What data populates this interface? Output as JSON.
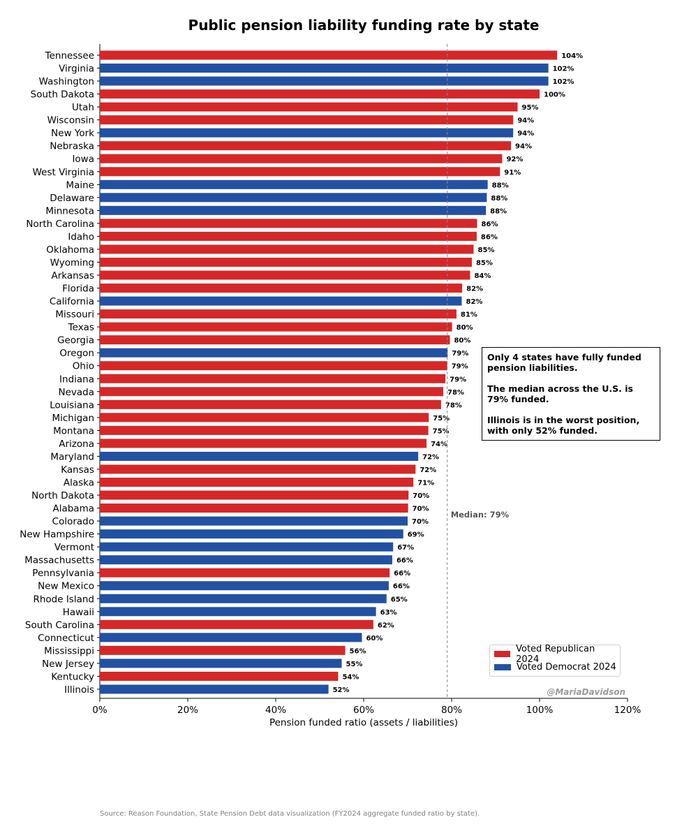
{
  "chart_data": {
    "type": "bar",
    "orientation": "horizontal",
    "title": "Public pension liability funding rate by state",
    "xlabel": "Pension funded ratio (assets / liabilities)",
    "ylabel": "",
    "xlim": [
      0,
      120
    ],
    "xticks": [
      0,
      20,
      40,
      60,
      80,
      100,
      120
    ],
    "xtick_labels": [
      "0%",
      "20%",
      "40%",
      "60%",
      "80%",
      "100%",
      "120%"
    ],
    "grid": false,
    "median": {
      "value": 79,
      "label": "Median: 79%"
    },
    "legend_placement": "lower-right",
    "series": [
      {
        "name": "Voted Republican 2024",
        "color": "#d62728"
      },
      {
        "name": "Voted Democrat 2024",
        "color": "#2251a3"
      }
    ],
    "bars": [
      {
        "state": "Tennessee",
        "value": 104,
        "label": "104%",
        "party": "R"
      },
      {
        "state": "Virginia",
        "value": 102,
        "label": "102%",
        "party": "D"
      },
      {
        "state": "Washington",
        "value": 102,
        "label": "102%",
        "party": "D"
      },
      {
        "state": "South Dakota",
        "value": 100,
        "label": "100%",
        "party": "R"
      },
      {
        "state": "Utah",
        "value": 95,
        "label": "95%",
        "party": "R"
      },
      {
        "state": "Wisconsin",
        "value": 94,
        "label": "94%",
        "party": "R"
      },
      {
        "state": "New York",
        "value": 94,
        "label": "94%",
        "party": "D"
      },
      {
        "state": "Nebraska",
        "value": 93.5,
        "label": "94%",
        "party": "R"
      },
      {
        "state": "Iowa",
        "value": 91.5,
        "label": "92%",
        "party": "R"
      },
      {
        "state": "West Virginia",
        "value": 91,
        "label": "91%",
        "party": "R"
      },
      {
        "state": "Maine",
        "value": 88.2,
        "label": "88%",
        "party": "D"
      },
      {
        "state": "Delaware",
        "value": 88,
        "label": "88%",
        "party": "D"
      },
      {
        "state": "Minnesota",
        "value": 87.8,
        "label": "88%",
        "party": "D"
      },
      {
        "state": "North Carolina",
        "value": 85.8,
        "label": "86%",
        "party": "R"
      },
      {
        "state": "Idaho",
        "value": 85.7,
        "label": "86%",
        "party": "R"
      },
      {
        "state": "Oklahoma",
        "value": 85,
        "label": "85%",
        "party": "R"
      },
      {
        "state": "Wyoming",
        "value": 84.6,
        "label": "85%",
        "party": "R"
      },
      {
        "state": "Arkansas",
        "value": 84.2,
        "label": "84%",
        "party": "R"
      },
      {
        "state": "Florida",
        "value": 82.4,
        "label": "82%",
        "party": "R"
      },
      {
        "state": "California",
        "value": 82.3,
        "label": "82%",
        "party": "D"
      },
      {
        "state": "Missouri",
        "value": 81.1,
        "label": "81%",
        "party": "R"
      },
      {
        "state": "Texas",
        "value": 80.1,
        "label": "80%",
        "party": "R"
      },
      {
        "state": "Georgia",
        "value": 79.6,
        "label": "80%",
        "party": "R"
      },
      {
        "state": "Oregon",
        "value": 79.1,
        "label": "79%",
        "party": "D"
      },
      {
        "state": "Ohio",
        "value": 79,
        "label": "79%",
        "party": "R"
      },
      {
        "state": "Indiana",
        "value": 78.6,
        "label": "79%",
        "party": "R"
      },
      {
        "state": "Nevada",
        "value": 78.1,
        "label": "78%",
        "party": "R"
      },
      {
        "state": "Louisiana",
        "value": 77.6,
        "label": "78%",
        "party": "R"
      },
      {
        "state": "Michigan",
        "value": 74.8,
        "label": "75%",
        "party": "R"
      },
      {
        "state": "Montana",
        "value": 74.7,
        "label": "75%",
        "party": "R"
      },
      {
        "state": "Arizona",
        "value": 74.3,
        "label": "74%",
        "party": "R"
      },
      {
        "state": "Maryland",
        "value": 72.4,
        "label": "72%",
        "party": "D"
      },
      {
        "state": "Kansas",
        "value": 71.8,
        "label": "72%",
        "party": "R"
      },
      {
        "state": "Alaska",
        "value": 71.3,
        "label": "71%",
        "party": "R"
      },
      {
        "state": "North Dakota",
        "value": 70.2,
        "label": "70%",
        "party": "R"
      },
      {
        "state": "Alabama",
        "value": 70.1,
        "label": "70%",
        "party": "R"
      },
      {
        "state": "Colorado",
        "value": 70,
        "label": "70%",
        "party": "D"
      },
      {
        "state": "New Hampshire",
        "value": 69,
        "label": "69%",
        "party": "D"
      },
      {
        "state": "Vermont",
        "value": 66.7,
        "label": "67%",
        "party": "D"
      },
      {
        "state": "Massachusetts",
        "value": 66.5,
        "label": "66%",
        "party": "D"
      },
      {
        "state": "Pennsylvania",
        "value": 65.9,
        "label": "66%",
        "party": "R"
      },
      {
        "state": "New Mexico",
        "value": 65.7,
        "label": "66%",
        "party": "D"
      },
      {
        "state": "Rhode Island",
        "value": 65.2,
        "label": "65%",
        "party": "D"
      },
      {
        "state": "Hawaii",
        "value": 62.8,
        "label": "63%",
        "party": "D"
      },
      {
        "state": "South Carolina",
        "value": 62.2,
        "label": "62%",
        "party": "R"
      },
      {
        "state": "Connecticut",
        "value": 59.6,
        "label": "60%",
        "party": "D"
      },
      {
        "state": "Mississippi",
        "value": 55.8,
        "label": "56%",
        "party": "R"
      },
      {
        "state": "New Jersey",
        "value": 55,
        "label": "55%",
        "party": "D"
      },
      {
        "state": "Kentucky",
        "value": 54.2,
        "label": "54%",
        "party": "R"
      },
      {
        "state": "Illinois",
        "value": 52,
        "label": "52%",
        "party": "D"
      }
    ]
  },
  "annotation": {
    "p1": "Only 4 states have fully funded pension liabilities.",
    "p2": "The median across the U.S. is 79% funded.",
    "p3": "Illinois is in the worst position, with only 52% funded."
  },
  "watermark": "@MariaDavidson",
  "source": "Source: Reason Foundation, State Pension Debt data visualization (FY2024 aggregate funded ratio by state)."
}
